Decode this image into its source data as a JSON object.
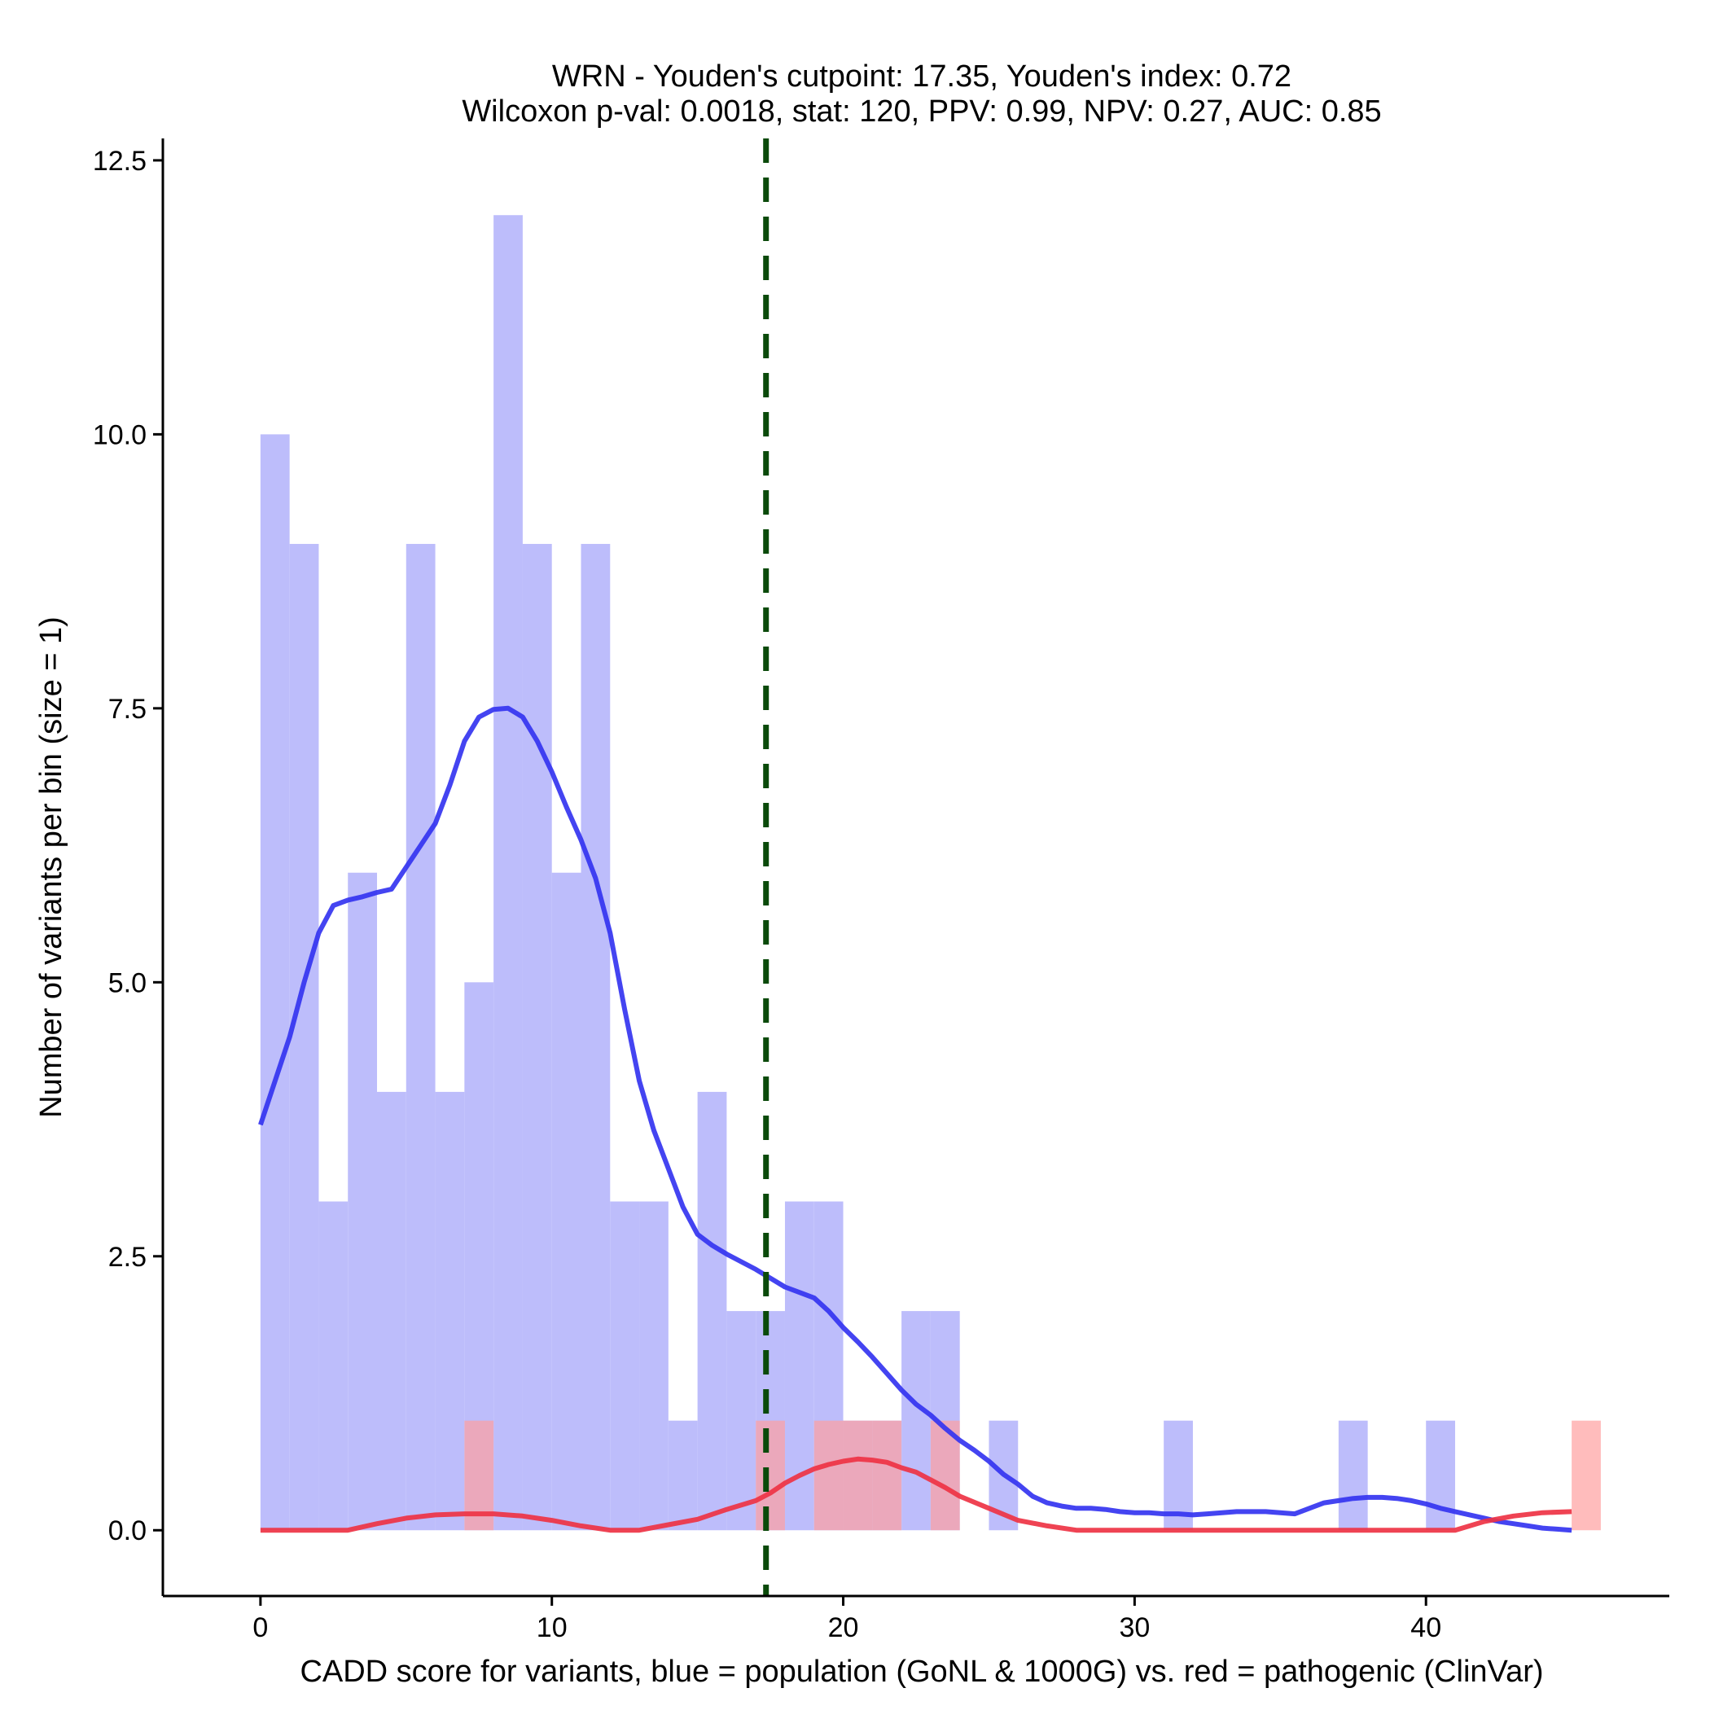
{
  "chart_data": {
    "type": "bar",
    "title_lines": [
      "WRN - Youden's cutpoint: 17.35, Youden's index: 0.72",
      "Wilcoxon p-val: 0.0018, stat: 120, PPV: 0.99, NPV: 0.27, AUC: 0.85"
    ],
    "xlabel": "CADD score for variants, blue = population (GoNL & 1000G) vs. red = pathogenic (ClinVar)",
    "ylabel": "Number of variants per bin (size = 1)",
    "xlim": [
      -3.35,
      48.35
    ],
    "ylim": [
      -0.6,
      12.7
    ],
    "x_ticks": [
      0,
      10,
      20,
      30,
      40
    ],
    "x_tick_labels": [
      "0",
      "10",
      "20",
      "30",
      "40"
    ],
    "y_ticks": [
      0,
      2.5,
      5,
      7.5,
      10,
      12.5
    ],
    "y_tick_labels": [
      "0.0",
      "2.5",
      "5.0",
      "7.5",
      "10.0",
      "12.5"
    ],
    "bin_width": 1,
    "cutpoint": 17.35,
    "colors": {
      "population_bar": "#bdbdfb",
      "pathogenic_bar": "#ffa0a0",
      "population_line": "#3434f0",
      "pathogenic_line": "#ee3344",
      "cutpoint_line": "#0a4a0a",
      "axis": "#000000"
    },
    "series": [
      {
        "name": "population",
        "bin_starts": [
          0,
          1,
          2,
          3,
          4,
          5,
          6,
          7,
          8,
          9,
          10,
          11,
          12,
          13,
          14,
          15,
          16,
          17,
          18,
          19,
          20,
          21,
          22,
          23,
          25,
          31,
          37,
          40
        ],
        "counts": [
          10,
          9,
          3,
          6,
          4,
          9,
          4,
          5,
          12,
          9,
          6,
          9,
          3,
          3,
          1,
          4,
          2,
          2,
          3,
          3,
          1,
          1,
          2,
          2,
          1,
          1,
          1,
          1
        ]
      },
      {
        "name": "pathogenic",
        "bin_starts": [
          7,
          17,
          19,
          20,
          21,
          23,
          45
        ],
        "counts": [
          1,
          1,
          1,
          1,
          1,
          1,
          1
        ]
      }
    ],
    "density_curves": [
      {
        "name": "population",
        "x": [
          0,
          0.5,
          1,
          1.5,
          2,
          2.5,
          3,
          3.5,
          4,
          4.5,
          5,
          5.5,
          6,
          6.5,
          7,
          7.5,
          8,
          8.5,
          9,
          9.5,
          10,
          10.5,
          11,
          11.5,
          12,
          12.5,
          13,
          13.5,
          14,
          14.5,
          15,
          15.5,
          16,
          16.5,
          17,
          17.5,
          18,
          18.5,
          19,
          19.5,
          20,
          20.5,
          21,
          21.5,
          22,
          22.5,
          23,
          23.5,
          24,
          24.5,
          25,
          25.5,
          26,
          26.5,
          27,
          27.5,
          28,
          28.5,
          29,
          29.5,
          30,
          30.5,
          31,
          31.5,
          32,
          32.5,
          33,
          33.5,
          34,
          34.5,
          35,
          35.5,
          36,
          36.5,
          37,
          37.5,
          38,
          38.5,
          39,
          39.5,
          40,
          40.5,
          41,
          41.5,
          42,
          42.5,
          43,
          43.5,
          44,
          44.5,
          45
        ],
        "y": [
          3.7,
          4.1,
          4.5,
          5.0,
          5.45,
          5.7,
          5.75,
          5.78,
          5.82,
          5.85,
          6.05,
          6.25,
          6.45,
          6.8,
          7.2,
          7.42,
          7.49,
          7.5,
          7.42,
          7.2,
          6.92,
          6.6,
          6.3,
          5.95,
          5.45,
          4.75,
          4.1,
          3.65,
          3.3,
          2.95,
          2.7,
          2.6,
          2.52,
          2.45,
          2.38,
          2.3,
          2.22,
          2.17,
          2.12,
          2.0,
          1.85,
          1.72,
          1.58,
          1.43,
          1.28,
          1.15,
          1.05,
          0.93,
          0.82,
          0.73,
          0.63,
          0.51,
          0.42,
          0.31,
          0.25,
          0.22,
          0.2,
          0.2,
          0.19,
          0.17,
          0.16,
          0.16,
          0.15,
          0.15,
          0.14,
          0.15,
          0.16,
          0.17,
          0.17,
          0.17,
          0.16,
          0.15,
          0.2,
          0.25,
          0.27,
          0.29,
          0.3,
          0.3,
          0.29,
          0.27,
          0.24,
          0.2,
          0.17,
          0.14,
          0.11,
          0.08,
          0.06,
          0.04,
          0.02,
          0.01,
          0.0
        ]
      },
      {
        "name": "pathogenic",
        "x": [
          0,
          1,
          2,
          3,
          4,
          5,
          6,
          7,
          8,
          9,
          10,
          11,
          12,
          13,
          14,
          15,
          16,
          17,
          17.5,
          18,
          18.5,
          19,
          19.5,
          20,
          20.5,
          21,
          21.5,
          22,
          22.5,
          23,
          23.5,
          24,
          25,
          26,
          27,
          28,
          29,
          30,
          31,
          32,
          33,
          34,
          35,
          36,
          37,
          38,
          39,
          40,
          41,
          42,
          43,
          44,
          45
        ],
        "y": [
          0,
          0,
          0,
          0,
          0.06,
          0.11,
          0.14,
          0.15,
          0.15,
          0.13,
          0.09,
          0.04,
          0,
          0,
          0.05,
          0.1,
          0.19,
          0.27,
          0.34,
          0.43,
          0.5,
          0.56,
          0.6,
          0.63,
          0.65,
          0.64,
          0.62,
          0.57,
          0.53,
          0.46,
          0.39,
          0.31,
          0.2,
          0.09,
          0.04,
          0,
          0,
          0,
          0,
          0,
          0,
          0,
          0,
          0,
          0,
          0,
          0,
          0,
          0,
          0.08,
          0.13,
          0.16,
          0.17
        ]
      }
    ]
  }
}
